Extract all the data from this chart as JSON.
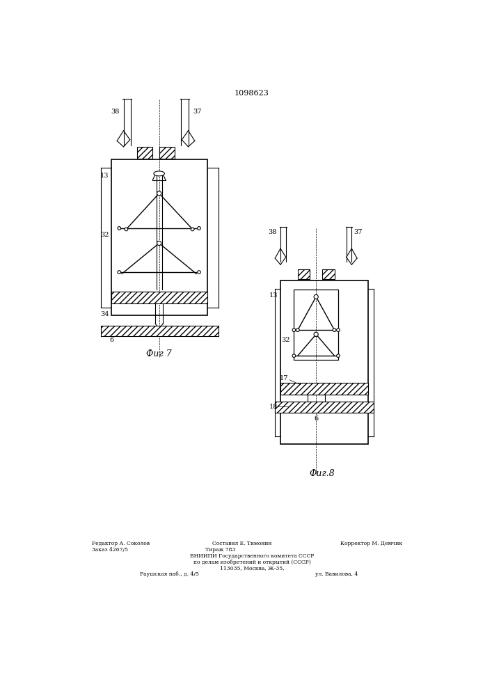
{
  "title": "1098623",
  "fig7_label": "Фиг 7",
  "fig8_label": "Фиг.8",
  "bg_color": "#ffffff",
  "line_color": "#000000",
  "footer_lines": [
    [
      "Редактор А. Соколов",
      110,
      858
    ],
    [
      "Составил Е. Тимонин",
      335,
      858
    ],
    [
      "Корректор М. Демчик",
      575,
      858
    ],
    [
      "Заказ 4267/5",
      90,
      870
    ],
    [
      "Тираж 783",
      295,
      870
    ],
    [
      "ВНИИПИ Государственного комитета СССР",
      353,
      882
    ],
    [
      "по делам изобретений и открытий (СССР)",
      353,
      893
    ],
    [
      "113035, Москва, Ж-35,",
      353,
      904
    ],
    [
      "Раушская наб., д. 4/5",
      200,
      915
    ],
    [
      "ул. Вавилова, 4",
      510,
      915
    ]
  ]
}
